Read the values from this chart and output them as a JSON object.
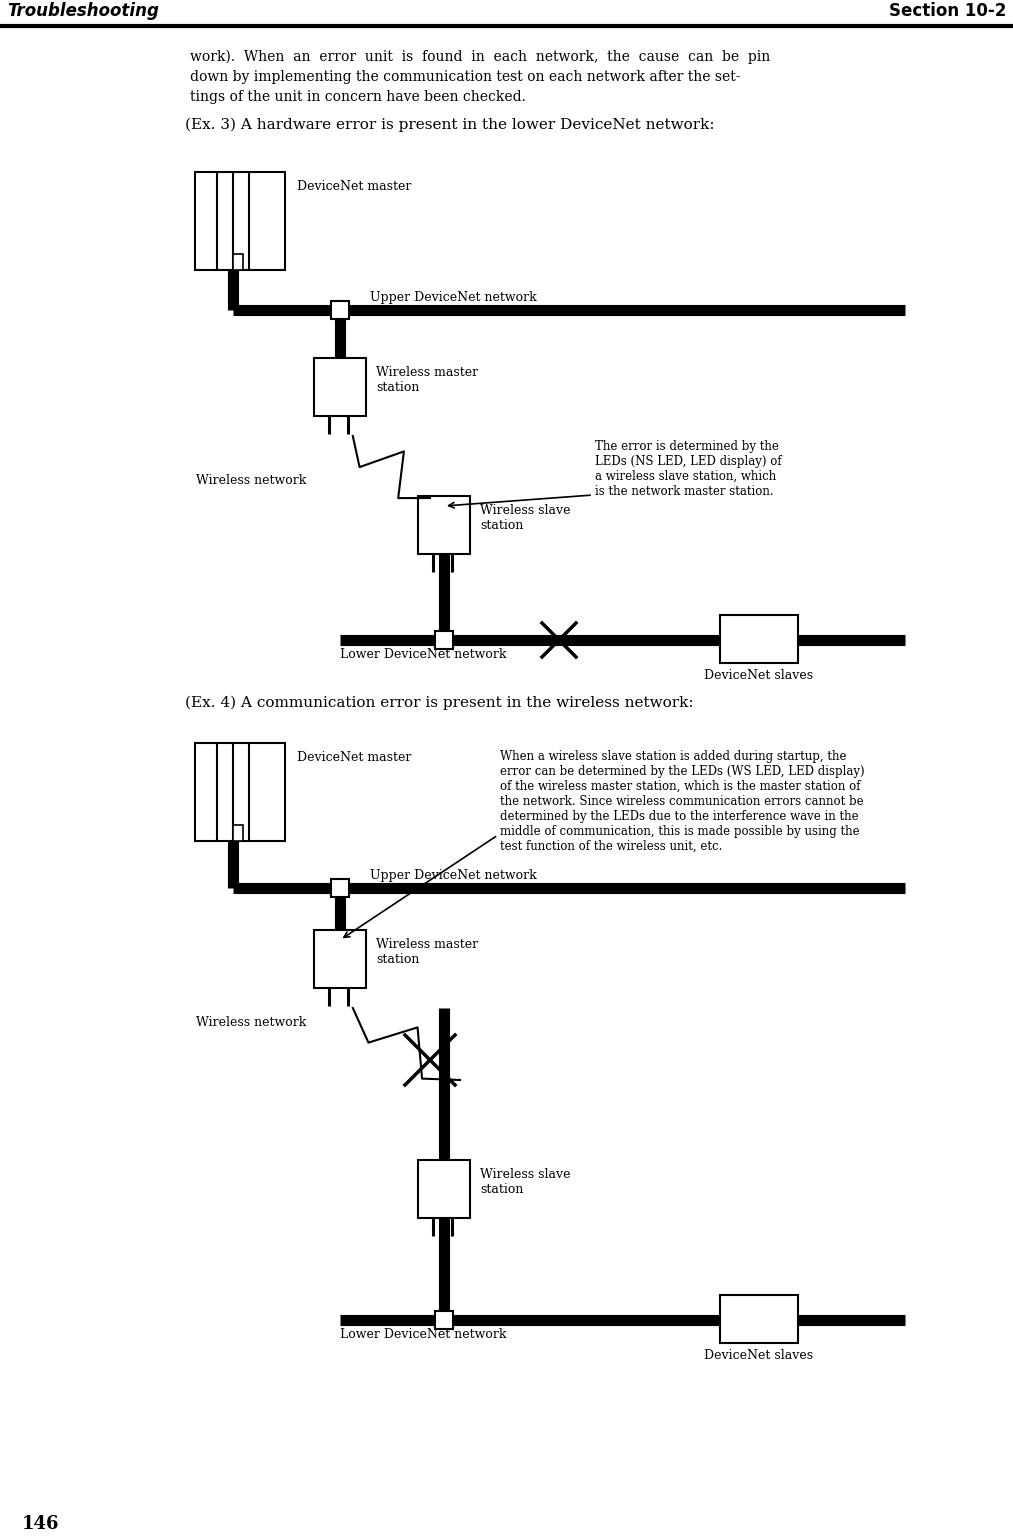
{
  "page_number": "146",
  "header_left": "Troubleshooting",
  "header_right": "Section 10-2",
  "body_text_lines": [
    "work).  When  an  error  unit  is  found  in  each  network,  the  cause  can  be  pin",
    "down by implementing the communication test on each network after the set-",
    "tings of the unit in concern have been checked."
  ],
  "ex3_title": "(Ex. 3) A hardware error is present in the lower DeviceNet network:",
  "ex4_title": "(Ex. 4) A communication error is present in the wireless network:",
  "bg_color": "#ffffff",
  "diagram1": {
    "devicenet_master_label": "DeviceNet master",
    "upper_network_label": "Upper DeviceNet network",
    "wireless_master_label": "Wireless master\nstation",
    "wireless_network_label": "Wireless network",
    "wireless_slave_label": "Wireless slave\nstation",
    "lower_network_label": "Lower DeviceNet network",
    "devicenet_slaves_label": "DeviceNet slaves",
    "error_note": "The error is determined by the\nLEDs (NS LED, LED display) of\na wireless slave station, which\nis the network master station."
  },
  "diagram2": {
    "devicenet_master_label": "DeviceNet master",
    "upper_network_label": "Upper DeviceNet network",
    "wireless_master_label": "Wireless master\nstation",
    "wireless_network_label": "Wireless network",
    "wireless_slave_label": "Wireless slave\nstation",
    "lower_network_label": "Lower DeviceNet network",
    "devicenet_slaves_label": "DeviceNet slaves",
    "error_note": "When a wireless slave station is added during startup, the\nerror can be determined by the LEDs (WS LED, LED display)\nof the wireless master station, which is the master station of\nthe network. Since wireless communication errors cannot be\ndetermined by the LEDs due to the interference wave in the\nmiddle of communication, this is made possible by using the\ntest function of the wireless unit, etc."
  }
}
